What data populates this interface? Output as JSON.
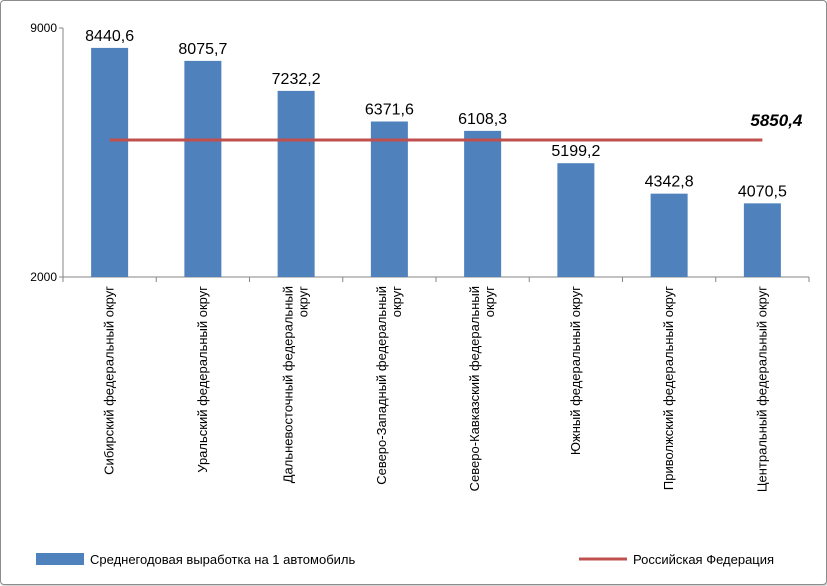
{
  "chart_data": {
    "type": "bar",
    "title": "",
    "xlabel": "",
    "ylabel": "",
    "ylim": [
      2000,
      9000
    ],
    "yticks": [
      "2000",
      "9000"
    ],
    "categories": [
      [
        "Сибирский федеральный округ"
      ],
      [
        "Уральский федеральный округ"
      ],
      [
        "Дальневосточный федеральный",
        "округ"
      ],
      [
        "Северо-Западный федеральный",
        "округ"
      ],
      [
        "Северо-Кавказский федеральный",
        "округ"
      ],
      [
        "Южный федеральный округ"
      ],
      [
        "Приволжский федеральный округ"
      ],
      [
        "Центральный федеральный округ"
      ]
    ],
    "series": [
      {
        "name": "Среднегодовая выработка на 1 автомобиль",
        "kind": "bar",
        "color": "#4f81bd",
        "values": [
          8440.6,
          8075.7,
          7232.2,
          6371.6,
          6108.3,
          5199.2,
          4342.8,
          4070.5
        ],
        "labels": [
          "8440,6",
          "8075,7",
          "7232,2",
          "6371,6",
          "6108,3",
          "5199,2",
          "4342,8",
          "4070,5"
        ]
      },
      {
        "name": "Российская Федерация",
        "kind": "line",
        "color": "#c0504d",
        "value": 5850.4,
        "label": "5850,4"
      }
    ],
    "legend_position": "bottom"
  }
}
